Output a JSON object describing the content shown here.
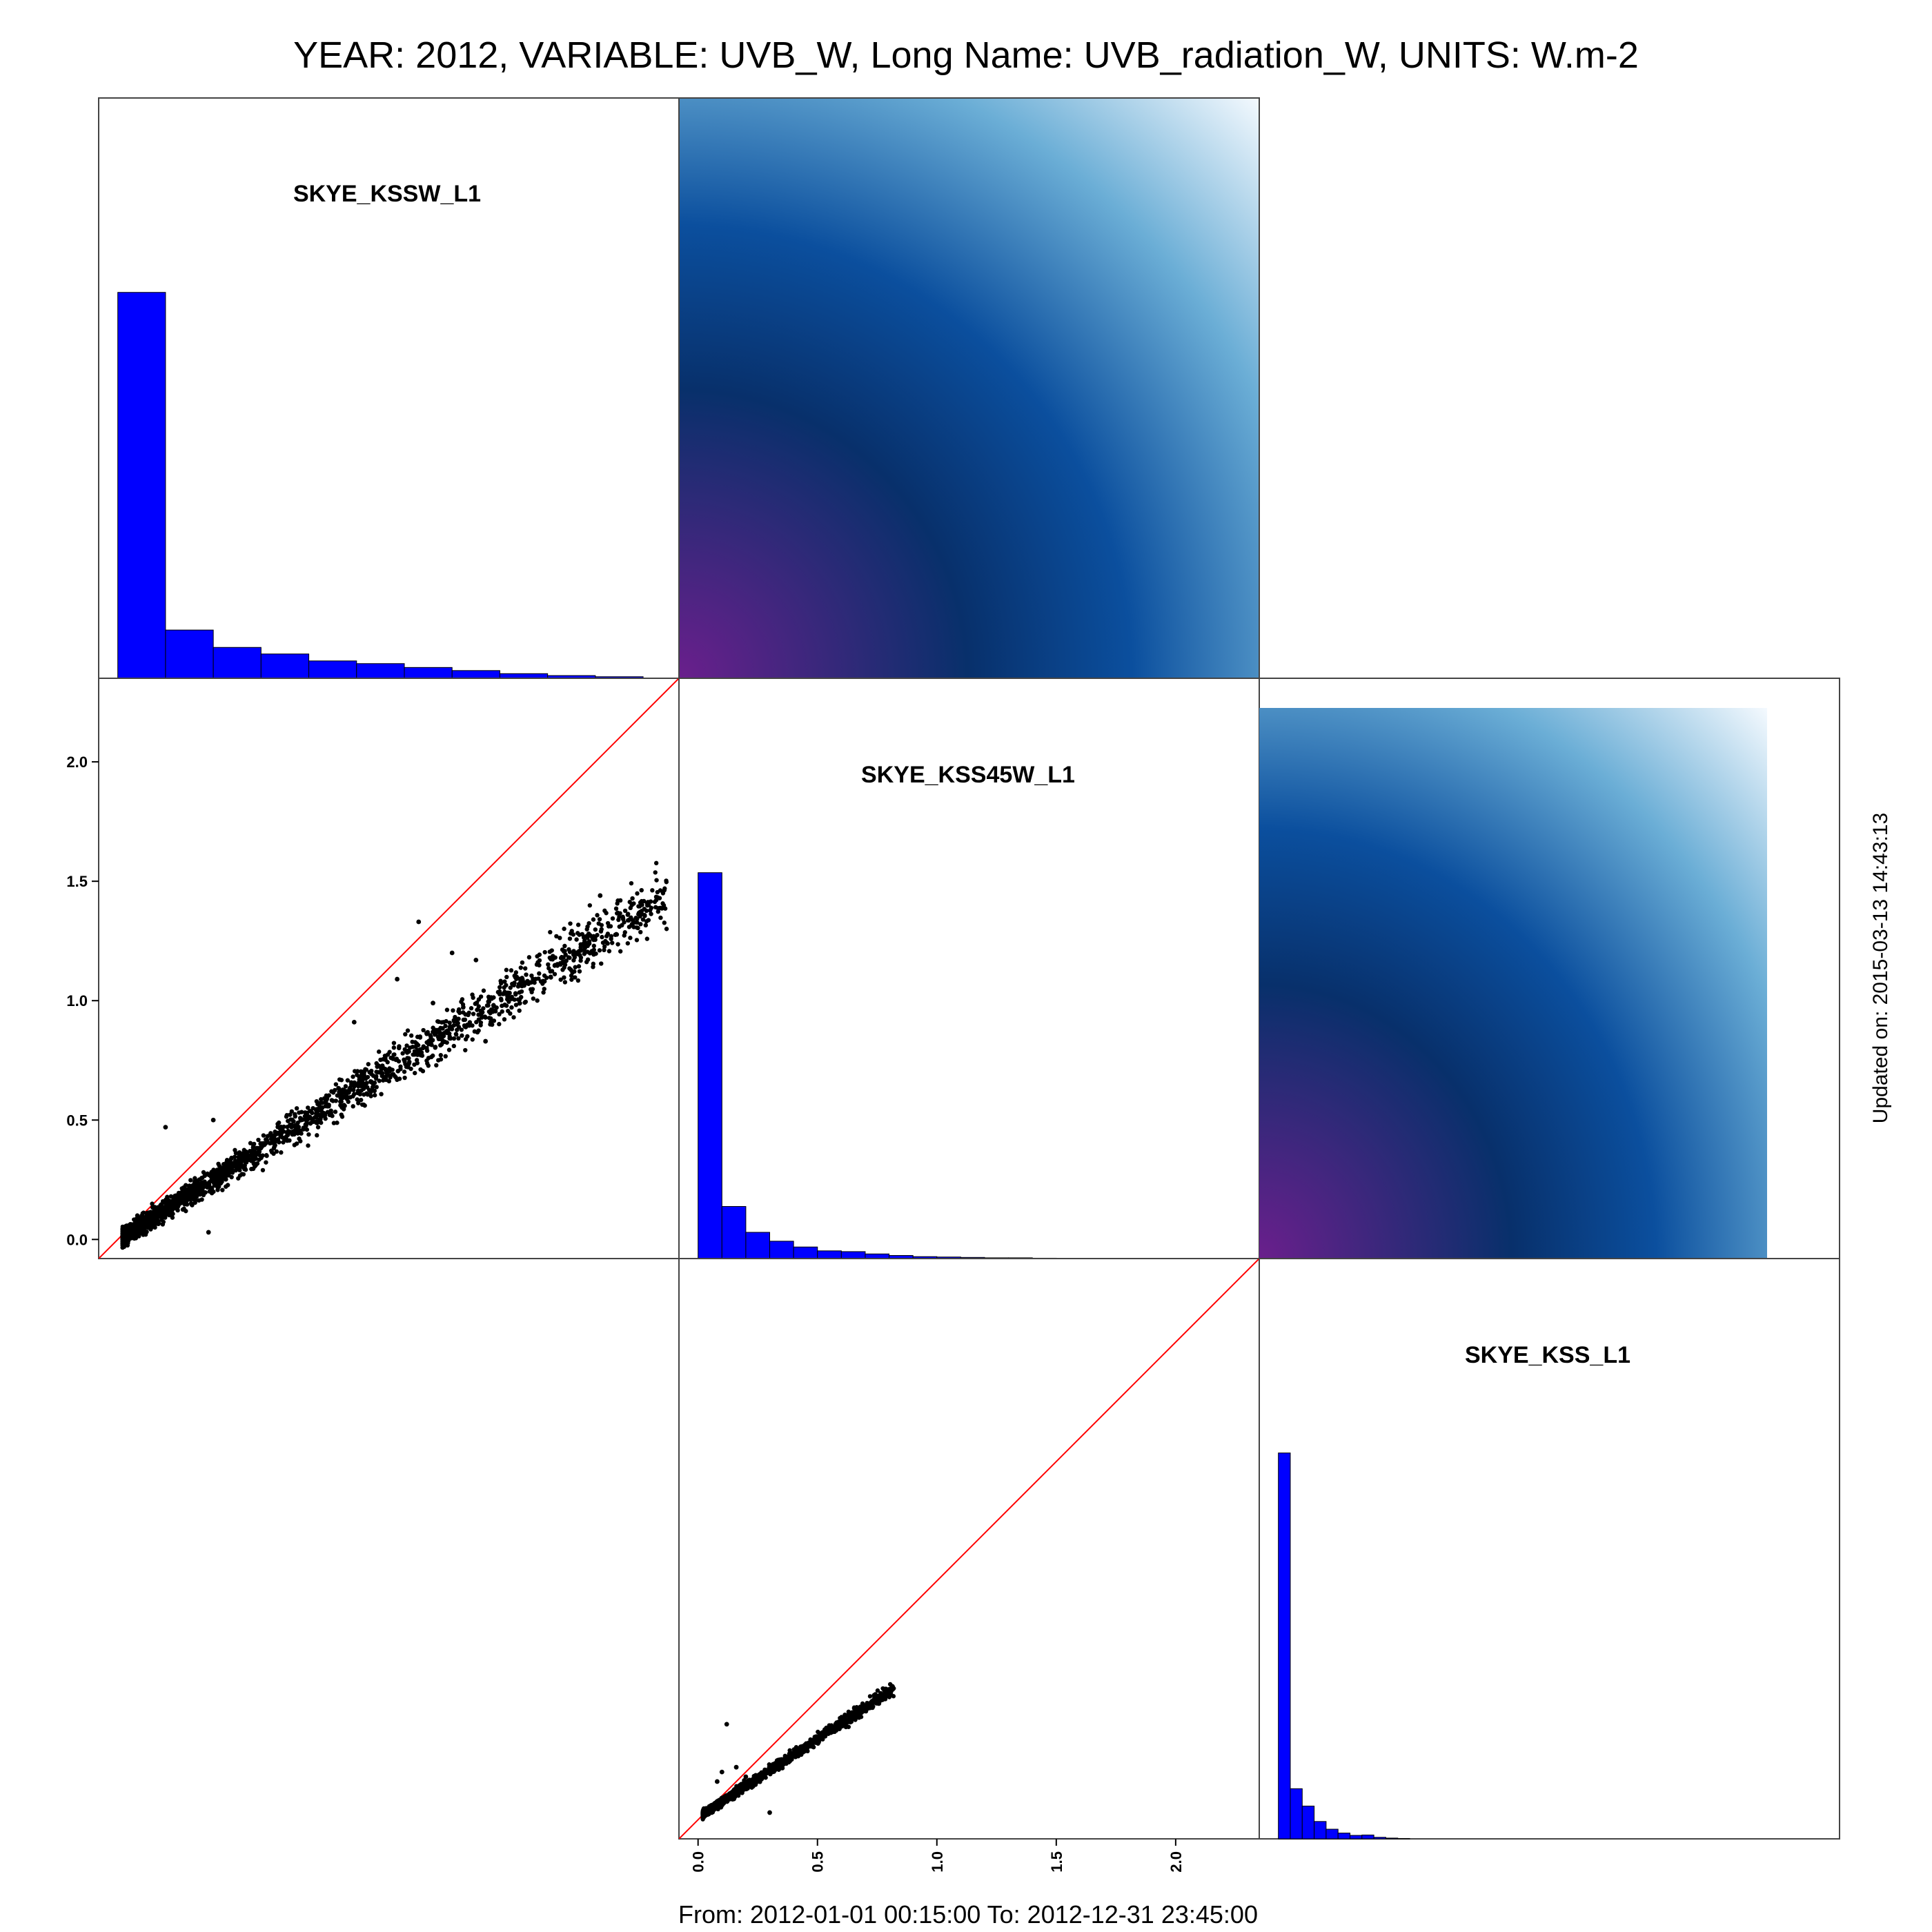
{
  "page": {
    "title": "YEAR: 2012, VARIABLE: UVB_W, Long Name: UVB_radiation_W, UNITS: W.m-2",
    "footer": "From: 2012-01-01 00:15:00 To: 2012-12-31 23:45:00",
    "side_note": "Updated on: 2015-03-13 14:43:13"
  },
  "colors": {
    "histogram_fill": "#0000ff",
    "points": "#000000",
    "identity_line": "#ff0000",
    "density_low": "#6a1f8c",
    "density_mid": "#08306b",
    "density_high": "#f7fbff"
  },
  "chart_data": {
    "type": "scatter",
    "variables": [
      "SKYE_KSSW_L1",
      "SKYE_KSS45W_L1",
      "SKYE_KSS_L1"
    ],
    "axis_range": [
      -0.08,
      2.35
    ],
    "tick_labels": [
      "0.0",
      "0.5",
      "1.0",
      "1.5",
      "2.0"
    ],
    "tick_values": [
      0,
      0.5,
      1.0,
      1.5,
      2.0
    ],
    "diagonal_histograms": [
      {
        "variable": "SKYE_KSSW_L1",
        "bin_edges": [
          0,
          0.2,
          0.4,
          0.6,
          0.8,
          1.0,
          1.2,
          1.4,
          1.6,
          1.8,
          2.0,
          2.2
        ],
        "relative_heights": [
          1.0,
          0.125,
          0.08,
          0.063,
          0.045,
          0.038,
          0.028,
          0.02,
          0.012,
          0.007,
          0.004
        ]
      },
      {
        "variable": "SKYE_KSS45W_L1",
        "bin_edges": [
          0,
          0.1,
          0.2,
          0.3,
          0.4,
          0.5,
          0.6,
          0.7,
          0.8,
          0.9,
          1.0,
          1.1,
          1.2,
          1.3,
          1.4,
          1.5
        ],
        "relative_heights": [
          1.0,
          0.135,
          0.068,
          0.045,
          0.03,
          0.02,
          0.018,
          0.012,
          0.008,
          0.005,
          0.004,
          0.003,
          0.002,
          0.002,
          0.001
        ]
      },
      {
        "variable": "SKYE_KSS_L1",
        "bin_edges": [
          0,
          0.05,
          0.1,
          0.15,
          0.2,
          0.25,
          0.3,
          0.35,
          0.4,
          0.45,
          0.5,
          0.55
        ],
        "relative_heights": [
          1.0,
          0.13,
          0.085,
          0.045,
          0.025,
          0.015,
          0.009,
          0.01,
          0.004,
          0.002,
          0.001
        ]
      }
    ],
    "scatter_panels": [
      {
        "x_variable": "SKYE_KSSW_L1",
        "y_variable": "SKYE_KSS45W_L1",
        "trend": {
          "slope": 0.63,
          "intercept": 0.0,
          "x_max": 2.3
        },
        "outliers": [
          [
            0.2,
            0.47
          ],
          [
            0.4,
            0.5
          ],
          [
            0.99,
            0.91
          ],
          [
            1.17,
            1.09
          ],
          [
            1.26,
            1.33
          ],
          [
            1.4,
            1.2
          ],
          [
            1.5,
            1.17
          ],
          [
            1.54,
            0.83
          ],
          [
            1.32,
            0.99
          ],
          [
            2.02,
            1.44
          ],
          [
            0.38,
            0.03
          ]
        ]
      },
      {
        "x_variable": "SKYE_KSS45W_L1",
        "y_variable": "SKYE_KSS_L1",
        "trend": {
          "slope": 0.66,
          "intercept": 0.01,
          "x_max": 0.82
        },
        "outliers": [
          [
            0.12,
            0.4
          ],
          [
            0.1,
            0.2
          ],
          [
            0.16,
            0.22
          ],
          [
            0.2,
            0.18
          ],
          [
            0.3,
            0.03
          ],
          [
            0.08,
            0.16
          ]
        ]
      }
    ],
    "density_panels": [
      {
        "x_variable": "SKYE_KSS45W_L1",
        "y_variable": "SKYE_KSSW_L1"
      },
      {
        "x_variable": "SKYE_KSS_L1",
        "y_variable": "SKYE_KSS45W_L1"
      }
    ],
    "grid": false,
    "legend": "none"
  }
}
